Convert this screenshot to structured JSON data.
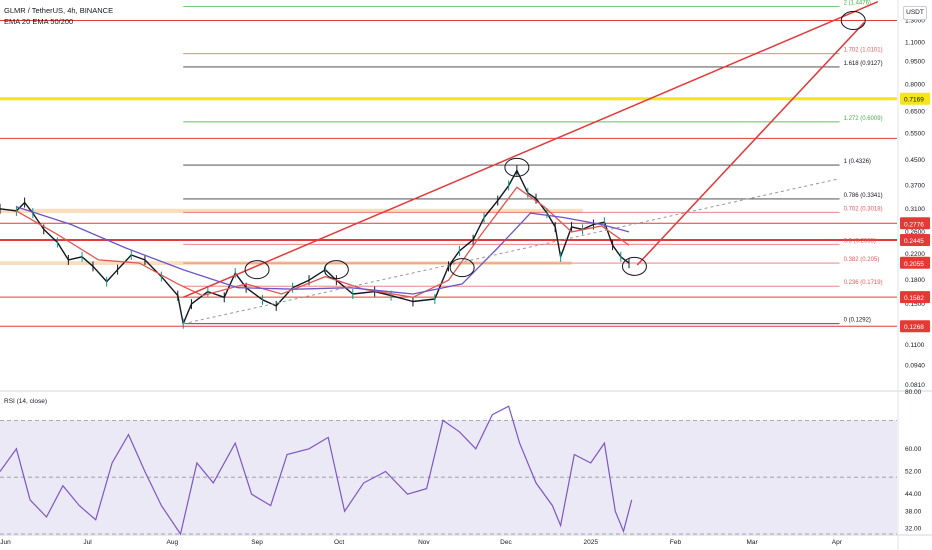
{
  "header": {
    "symbol_line": "GLMR / TetherUS, 4h, BINANCE",
    "indicator_line": "EMA 20 EMA 50/200"
  },
  "currency_label": "USDT",
  "rsi_label": "RSI (14, close)",
  "colors": {
    "candle_up": "#089981",
    "candle_down": "#131722",
    "ema20": "#e0554f",
    "ema50": "#6b55c9",
    "resistance": "#e03a3a",
    "yellow_level": "#f5e51a",
    "rsi_line": "#7e57c2",
    "rsi_band": "#e3dff2",
    "fib_green": "#4caf50",
    "fib_red": "#e85a5a",
    "fib_black": "#131722",
    "fib_orange": "#f3b46d",
    "fib_blue": "#64b5f6"
  },
  "chart_data": [
    {
      "type": "line",
      "title": "GLMR / TetherUS, 4h, BINANCE",
      "y_scale": "log",
      "ylim": [
        0.078,
        1.52
      ],
      "xlim": [
        "2024-05-30",
        "2025-04-23"
      ],
      "x_ticks": [
        {
          "label": "Jun",
          "date": "2024-06-01"
        },
        {
          "label": "Jul",
          "date": "2024-07-01"
        },
        {
          "label": "Aug",
          "date": "2024-08-01"
        },
        {
          "label": "Sep",
          "date": "2024-09-01"
        },
        {
          "label": "Oct",
          "date": "2024-10-01"
        },
        {
          "label": "Nov",
          "date": "2024-11-01"
        },
        {
          "label": "Dec",
          "date": "2024-12-01"
        },
        {
          "label": "2025",
          "date": "2025-01-01"
        },
        {
          "label": "Feb",
          "date": "2025-02-01"
        },
        {
          "label": "Mar",
          "date": "2025-03-01"
        },
        {
          "label": "Apr",
          "date": "2025-04-01"
        }
      ],
      "y_ticks": [
        "1.3000",
        "1.1000",
        "0.9500",
        "0.8000",
        "0.6500",
        "0.5500",
        "0.4500",
        "0.3700",
        "0.3100",
        "0.2600",
        "0.2200",
        "0.1800",
        "0.1500",
        "0.1300",
        "0.1100",
        "0.0940",
        "0.0810"
      ],
      "price_tags": [
        {
          "label": "0.7169",
          "value": 0.7169,
          "bg": "#f5e51a",
          "fg": "#131722"
        },
        {
          "label": "0.2776",
          "value": 0.2776,
          "bg": "#e53935",
          "fg": "#ffffff"
        },
        {
          "label": "0.2445",
          "value": 0.2445,
          "bg": "#e53935",
          "fg": "#ffffff"
        },
        {
          "label": "0.2055",
          "value": 0.2055,
          "bg": "#e53935",
          "fg": "#ffffff"
        },
        {
          "label": "0.1582",
          "value": 0.1582,
          "bg": "#e53935",
          "fg": "#ffffff"
        },
        {
          "label": "0.1268",
          "value": 0.1268,
          "bg": "#e53935",
          "fg": "#ffffff"
        }
      ],
      "fib_levels": [
        {
          "label": "2 (1.4476)",
          "value": 1.4476,
          "color": "#4caf50"
        },
        {
          "label": "1.702 (1.0101)",
          "value": 1.0101,
          "color": "#e85a5a"
        },
        {
          "label": "1.618 (0.9127)",
          "value": 0.9127,
          "color": "#131722"
        },
        {
          "label": "1.272 (0.6009)",
          "value": 0.6009,
          "color": "#4caf50"
        },
        {
          "label": "1 (0.4326)",
          "value": 0.4326,
          "color": "#131722"
        },
        {
          "label": "0.786 (0.3341)",
          "value": 0.3341,
          "color": "#131722"
        },
        {
          "label": "0.702 (0.3018)",
          "value": 0.3018,
          "color": "#e85a5a"
        },
        {
          "label": "0.5 (0.2365)",
          "value": 0.2365,
          "color": "#e85a5a"
        },
        {
          "label": "0.382 (0.205)",
          "value": 0.205,
          "color": "#e85a5a"
        },
        {
          "label": "0.236 (0.1719)",
          "value": 0.1719,
          "color": "#e85a5a"
        },
        {
          "label": "0 (0.1292)",
          "value": 0.1292,
          "color": "#131722"
        }
      ],
      "red_horizontal_levels": [
        1.3,
        0.53,
        0.2776,
        0.2445,
        0.1582,
        0.1268
      ],
      "yellow_horizontal_level": 0.7169,
      "orange_zones": [
        {
          "from": "2024-05-30",
          "to": "2024-12-29",
          "values": [
            0.3,
            0.31
          ]
        },
        {
          "from": "2024-05-30",
          "to": "2024-12-25",
          "values": [
            0.202,
            0.208
          ]
        }
      ],
      "price_path": [
        {
          "x": "2024-05-30",
          "y": 0.31
        },
        {
          "x": "2024-06-05",
          "y": 0.305
        },
        {
          "x": "2024-06-08",
          "y": 0.325
        },
        {
          "x": "2024-06-11",
          "y": 0.3
        },
        {
          "x": "2024-06-15",
          "y": 0.265
        },
        {
          "x": "2024-06-20",
          "y": 0.24
        },
        {
          "x": "2024-06-24",
          "y": 0.21
        },
        {
          "x": "2024-06-29",
          "y": 0.215
        },
        {
          "x": "2024-07-03",
          "y": 0.2
        },
        {
          "x": "2024-07-08",
          "y": 0.178
        },
        {
          "x": "2024-07-12",
          "y": 0.195
        },
        {
          "x": "2024-07-17",
          "y": 0.218
        },
        {
          "x": "2024-07-22",
          "y": 0.21
        },
        {
          "x": "2024-07-28",
          "y": 0.185
        },
        {
          "x": "2024-08-03",
          "y": 0.16
        },
        {
          "x": "2024-08-05",
          "y": 0.1292
        },
        {
          "x": "2024-08-08",
          "y": 0.15
        },
        {
          "x": "2024-08-14",
          "y": 0.165
        },
        {
          "x": "2024-08-20",
          "y": 0.158
        },
        {
          "x": "2024-08-24",
          "y": 0.19
        },
        {
          "x": "2024-08-28",
          "y": 0.17
        },
        {
          "x": "2024-09-03",
          "y": 0.155
        },
        {
          "x": "2024-09-08",
          "y": 0.148
        },
        {
          "x": "2024-09-14",
          "y": 0.17
        },
        {
          "x": "2024-09-20",
          "y": 0.18
        },
        {
          "x": "2024-09-26",
          "y": 0.195
        },
        {
          "x": "2024-09-30",
          "y": 0.18
        },
        {
          "x": "2024-10-06",
          "y": 0.162
        },
        {
          "x": "2024-10-14",
          "y": 0.165
        },
        {
          "x": "2024-10-20",
          "y": 0.16
        },
        {
          "x": "2024-10-28",
          "y": 0.153
        },
        {
          "x": "2024-11-05",
          "y": 0.156
        },
        {
          "x": "2024-11-10",
          "y": 0.2
        },
        {
          "x": "2024-11-14",
          "y": 0.225
        },
        {
          "x": "2024-11-19",
          "y": 0.245
        },
        {
          "x": "2024-11-23",
          "y": 0.29
        },
        {
          "x": "2024-11-28",
          "y": 0.33
        },
        {
          "x": "2024-12-02",
          "y": 0.37
        },
        {
          "x": "2024-12-05",
          "y": 0.415
        },
        {
          "x": "2024-12-09",
          "y": 0.35
        },
        {
          "x": "2024-12-12",
          "y": 0.335
        },
        {
          "x": "2024-12-16",
          "y": 0.3
        },
        {
          "x": "2024-12-19",
          "y": 0.27
        },
        {
          "x": "2024-12-21",
          "y": 0.215
        },
        {
          "x": "2024-12-25",
          "y": 0.27
        },
        {
          "x": "2024-12-29",
          "y": 0.265
        },
        {
          "x": "2025-01-02",
          "y": 0.275
        },
        {
          "x": "2025-01-06",
          "y": 0.28
        },
        {
          "x": "2025-01-09",
          "y": 0.235
        },
        {
          "x": "2025-01-12",
          "y": 0.215
        },
        {
          "x": "2025-01-15",
          "y": 0.205
        }
      ],
      "ema20": [
        {
          "x": "2024-06-05",
          "y": 0.305
        },
        {
          "x": "2024-06-20",
          "y": 0.255
        },
        {
          "x": "2024-07-05",
          "y": 0.21
        },
        {
          "x": "2024-07-20",
          "y": 0.205
        },
        {
          "x": "2024-08-03",
          "y": 0.175
        },
        {
          "x": "2024-08-12",
          "y": 0.16
        },
        {
          "x": "2024-08-28",
          "y": 0.175
        },
        {
          "x": "2024-09-10",
          "y": 0.162
        },
        {
          "x": "2024-09-26",
          "y": 0.185
        },
        {
          "x": "2024-10-10",
          "y": 0.168
        },
        {
          "x": "2024-10-28",
          "y": 0.158
        },
        {
          "x": "2024-11-10",
          "y": 0.18
        },
        {
          "x": "2024-11-22",
          "y": 0.255
        },
        {
          "x": "2024-12-05",
          "y": 0.365
        },
        {
          "x": "2024-12-15",
          "y": 0.315
        },
        {
          "x": "2024-12-25",
          "y": 0.26
        },
        {
          "x": "2025-01-05",
          "y": 0.272
        },
        {
          "x": "2025-01-15",
          "y": 0.235
        }
      ],
      "ema50": [
        {
          "x": "2024-06-05",
          "y": 0.315
        },
        {
          "x": "2024-06-25",
          "y": 0.275
        },
        {
          "x": "2024-07-15",
          "y": 0.23
        },
        {
          "x": "2024-08-05",
          "y": 0.195
        },
        {
          "x": "2024-08-25",
          "y": 0.17
        },
        {
          "x": "2024-09-15",
          "y": 0.168
        },
        {
          "x": "2024-10-05",
          "y": 0.17
        },
        {
          "x": "2024-10-28",
          "y": 0.162
        },
        {
          "x": "2024-11-15",
          "y": 0.175
        },
        {
          "x": "2024-11-28",
          "y": 0.23
        },
        {
          "x": "2024-12-10",
          "y": 0.3
        },
        {
          "x": "2024-12-22",
          "y": 0.29
        },
        {
          "x": "2025-01-05",
          "y": 0.275
        },
        {
          "x": "2025-01-15",
          "y": 0.26
        }
      ],
      "drawings": {
        "red_trend_lines": [
          {
            "from": {
              "x": "2024-08-05",
              "y": 0.158
            },
            "to": {
              "x": "2025-04-16",
              "y": 1.5
            }
          },
          {
            "from": {
              "x": "2025-01-18",
              "y": 0.202
            },
            "to": {
              "x": "2025-04-11",
              "y": 1.28
            }
          }
        ],
        "dashed_support_line": {
          "from": {
            "x": "2024-08-05",
            "y": 0.1292
          },
          "to": {
            "x": "2025-04-02",
            "y": 0.39
          }
        },
        "circled_points": [
          {
            "x": "2024-09-01",
            "y": 0.195
          },
          {
            "x": "2024-09-30",
            "y": 0.195
          },
          {
            "x": "2024-11-15",
            "y": 0.198
          },
          {
            "x": "2024-12-05",
            "y": 0.425
          },
          {
            "x": "2025-01-17",
            "y": 0.2
          },
          {
            "x": "2025-04-07",
            "y": 1.3
          }
        ]
      }
    },
    {
      "type": "line",
      "title": "RSI (14, close)",
      "ylim": [
        30,
        80
      ],
      "y_ticks": [
        "80.00",
        "60.00",
        "52.00",
        "44.00",
        "38.00",
        "32.00"
      ],
      "band": [
        30,
        70
      ],
      "midline": 50,
      "series": [
        {
          "name": "RSI (14, close)",
          "values": [
            {
              "x": "2024-05-30",
              "y": 52
            },
            {
              "x": "2024-06-05",
              "y": 60
            },
            {
              "x": "2024-06-10",
              "y": 42
            },
            {
              "x": "2024-06-16",
              "y": 36
            },
            {
              "x": "2024-06-22",
              "y": 47
            },
            {
              "x": "2024-06-28",
              "y": 40
            },
            {
              "x": "2024-07-04",
              "y": 35
            },
            {
              "x": "2024-07-10",
              "y": 55
            },
            {
              "x": "2024-07-16",
              "y": 65
            },
            {
              "x": "2024-07-22",
              "y": 52
            },
            {
              "x": "2024-07-28",
              "y": 40
            },
            {
              "x": "2024-08-04",
              "y": 30
            },
            {
              "x": "2024-08-10",
              "y": 55
            },
            {
              "x": "2024-08-16",
              "y": 48
            },
            {
              "x": "2024-08-24",
              "y": 62
            },
            {
              "x": "2024-08-30",
              "y": 44
            },
            {
              "x": "2024-09-06",
              "y": 40
            },
            {
              "x": "2024-09-12",
              "y": 58
            },
            {
              "x": "2024-09-20",
              "y": 60
            },
            {
              "x": "2024-09-27",
              "y": 64
            },
            {
              "x": "2024-10-03",
              "y": 38
            },
            {
              "x": "2024-10-10",
              "y": 48
            },
            {
              "x": "2024-10-18",
              "y": 52
            },
            {
              "x": "2024-10-26",
              "y": 44
            },
            {
              "x": "2024-11-02",
              "y": 46
            },
            {
              "x": "2024-11-08",
              "y": 70
            },
            {
              "x": "2024-11-14",
              "y": 66
            },
            {
              "x": "2024-11-20",
              "y": 60
            },
            {
              "x": "2024-11-26",
              "y": 72
            },
            {
              "x": "2024-12-02",
              "y": 75
            },
            {
              "x": "2024-12-06",
              "y": 62
            },
            {
              "x": "2024-12-12",
              "y": 48
            },
            {
              "x": "2024-12-18",
              "y": 40
            },
            {
              "x": "2024-12-21",
              "y": 33
            },
            {
              "x": "2024-12-26",
              "y": 58
            },
            {
              "x": "2025-01-01",
              "y": 55
            },
            {
              "x": "2025-01-06",
              "y": 62
            },
            {
              "x": "2025-01-10",
              "y": 38
            },
            {
              "x": "2025-01-13",
              "y": 31
            },
            {
              "x": "2025-01-16",
              "y": 42
            }
          ]
        }
      ]
    }
  ]
}
